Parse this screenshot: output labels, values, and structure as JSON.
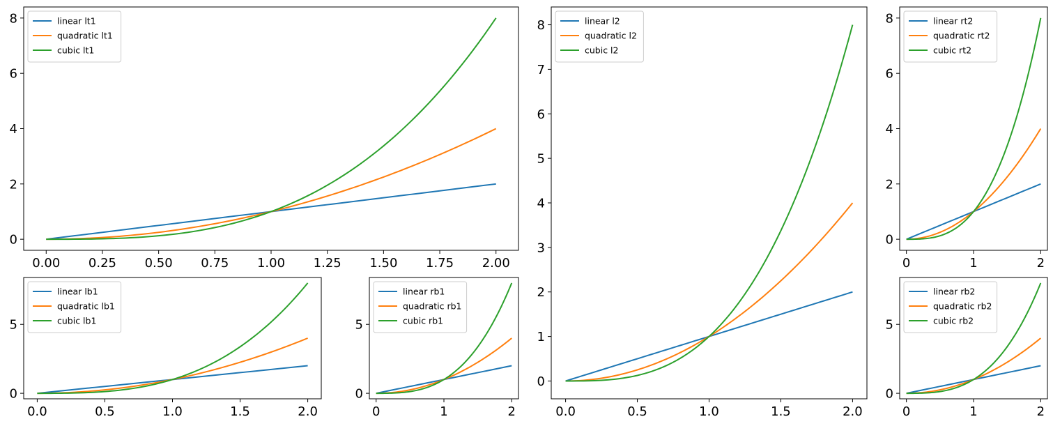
{
  "figure": {
    "colors": {
      "linear": "#1f77b4",
      "quadratic": "#ff7f0e",
      "cubic": "#2ca02c"
    }
  },
  "chart_data": [
    {
      "id": "lt1",
      "type": "line",
      "x": [
        0,
        0.25,
        0.5,
        0.75,
        1.0,
        1.25,
        1.5,
        1.75,
        2.0
      ],
      "xlim": [
        -0.1,
        2.1
      ],
      "ylim": [
        -0.4,
        8.4
      ],
      "xticks": [
        0.0,
        0.25,
        0.5,
        0.75,
        1.0,
        1.25,
        1.5,
        1.75,
        2.0
      ],
      "xtick_labels": [
        "0.00",
        "0.25",
        "0.50",
        "0.75",
        "1.00",
        "1.25",
        "1.50",
        "1.75",
        "2.00"
      ],
      "yticks": [
        0,
        2,
        4,
        6,
        8
      ],
      "ytick_labels": [
        "0",
        "2",
        "4",
        "6",
        "8"
      ],
      "legend_loc": "upper left",
      "grid": false,
      "series": [
        {
          "name": "linear lt1",
          "values": [
            0,
            0.25,
            0.5,
            0.75,
            1.0,
            1.25,
            1.5,
            1.75,
            2.0
          ]
        },
        {
          "name": "quadratic lt1",
          "values": [
            0,
            0.0625,
            0.25,
            0.5625,
            1.0,
            1.5625,
            2.25,
            3.0625,
            4.0
          ]
        },
        {
          "name": "cubic lt1",
          "values": [
            0,
            0.015625,
            0.125,
            0.421875,
            1.0,
            1.953125,
            3.375,
            5.359375,
            8.0
          ]
        }
      ]
    },
    {
      "id": "lb1",
      "type": "line",
      "x": [
        0,
        0.25,
        0.5,
        0.75,
        1.0,
        1.25,
        1.5,
        1.75,
        2.0
      ],
      "xlim": [
        -0.1,
        2.1
      ],
      "ylim": [
        -0.4,
        8.4
      ],
      "xticks": [
        0.0,
        0.5,
        1.0,
        1.5,
        2.0
      ],
      "xtick_labels": [
        "0.0",
        "0.5",
        "1.0",
        "1.5",
        "2.0"
      ],
      "yticks": [
        0,
        5
      ],
      "ytick_labels": [
        "0",
        "5"
      ],
      "legend_loc": "upper left",
      "grid": false,
      "series": [
        {
          "name": "linear lb1",
          "values": [
            0,
            0.25,
            0.5,
            0.75,
            1.0,
            1.25,
            1.5,
            1.75,
            2.0
          ]
        },
        {
          "name": "quadratic lb1",
          "values": [
            0,
            0.0625,
            0.25,
            0.5625,
            1.0,
            1.5625,
            2.25,
            3.0625,
            4.0
          ]
        },
        {
          "name": "cubic lb1",
          "values": [
            0,
            0.015625,
            0.125,
            0.421875,
            1.0,
            1.953125,
            3.375,
            5.359375,
            8.0
          ]
        }
      ]
    },
    {
      "id": "rb1",
      "type": "line",
      "x": [
        0,
        0.25,
        0.5,
        0.75,
        1.0,
        1.25,
        1.5,
        1.75,
        2.0
      ],
      "xlim": [
        -0.1,
        2.1
      ],
      "ylim": [
        -0.4,
        8.4
      ],
      "xticks": [
        0,
        1,
        2
      ],
      "xtick_labels": [
        "0",
        "1",
        "2"
      ],
      "yticks": [
        0,
        5
      ],
      "ytick_labels": [
        "0",
        "5"
      ],
      "legend_loc": "upper left",
      "grid": false,
      "series": [
        {
          "name": "linear rb1",
          "values": [
            0,
            0.25,
            0.5,
            0.75,
            1.0,
            1.25,
            1.5,
            1.75,
            2.0
          ]
        },
        {
          "name": "quadratic rb1",
          "values": [
            0,
            0.0625,
            0.25,
            0.5625,
            1.0,
            1.5625,
            2.25,
            3.0625,
            4.0
          ]
        },
        {
          "name": "cubic rb1",
          "values": [
            0,
            0.015625,
            0.125,
            0.421875,
            1.0,
            1.953125,
            3.375,
            5.359375,
            8.0
          ]
        }
      ]
    },
    {
      "id": "l2",
      "type": "line",
      "x": [
        0,
        0.25,
        0.5,
        0.75,
        1.0,
        1.25,
        1.5,
        1.75,
        2.0
      ],
      "xlim": [
        -0.1,
        2.1
      ],
      "ylim": [
        -0.4,
        8.4
      ],
      "xticks": [
        0.0,
        0.5,
        1.0,
        1.5,
        2.0
      ],
      "xtick_labels": [
        "0.0",
        "0.5",
        "1.0",
        "1.5",
        "2.0"
      ],
      "yticks": [
        0,
        1,
        2,
        3,
        4,
        5,
        6,
        7,
        8
      ],
      "ytick_labels": [
        "0",
        "1",
        "2",
        "3",
        "4",
        "5",
        "6",
        "7",
        "8"
      ],
      "legend_loc": "upper left",
      "grid": false,
      "series": [
        {
          "name": "linear l2",
          "values": [
            0,
            0.25,
            0.5,
            0.75,
            1.0,
            1.25,
            1.5,
            1.75,
            2.0
          ]
        },
        {
          "name": "quadratic l2",
          "values": [
            0,
            0.0625,
            0.25,
            0.5625,
            1.0,
            1.5625,
            2.25,
            3.0625,
            4.0
          ]
        },
        {
          "name": "cubic l2",
          "values": [
            0,
            0.015625,
            0.125,
            0.421875,
            1.0,
            1.953125,
            3.375,
            5.359375,
            8.0
          ]
        }
      ]
    },
    {
      "id": "rt2",
      "type": "line",
      "x": [
        0,
        0.25,
        0.5,
        0.75,
        1.0,
        1.25,
        1.5,
        1.75,
        2.0
      ],
      "xlim": [
        -0.1,
        2.1
      ],
      "ylim": [
        -0.4,
        8.4
      ],
      "xticks": [
        0,
        1,
        2
      ],
      "xtick_labels": [
        "0",
        "1",
        "2"
      ],
      "yticks": [
        0,
        2,
        4,
        6,
        8
      ],
      "ytick_labels": [
        "0",
        "2",
        "4",
        "6",
        "8"
      ],
      "legend_loc": "upper left",
      "grid": false,
      "series": [
        {
          "name": "linear rt2",
          "values": [
            0,
            0.25,
            0.5,
            0.75,
            1.0,
            1.25,
            1.5,
            1.75,
            2.0
          ]
        },
        {
          "name": "quadratic rt2",
          "values": [
            0,
            0.0625,
            0.25,
            0.5625,
            1.0,
            1.5625,
            2.25,
            3.0625,
            4.0
          ]
        },
        {
          "name": "cubic rt2",
          "values": [
            0,
            0.015625,
            0.125,
            0.421875,
            1.0,
            1.953125,
            3.375,
            5.359375,
            8.0
          ]
        }
      ]
    },
    {
      "id": "rb2",
      "type": "line",
      "x": [
        0,
        0.25,
        0.5,
        0.75,
        1.0,
        1.25,
        1.5,
        1.75,
        2.0
      ],
      "xlim": [
        -0.1,
        2.1
      ],
      "ylim": [
        -0.4,
        8.4
      ],
      "xticks": [
        0,
        1,
        2
      ],
      "xtick_labels": [
        "0",
        "1",
        "2"
      ],
      "yticks": [
        0,
        5
      ],
      "ytick_labels": [
        "0",
        "5"
      ],
      "legend_loc": "upper left",
      "grid": false,
      "series": [
        {
          "name": "linear rb2",
          "values": [
            0,
            0.25,
            0.5,
            0.75,
            1.0,
            1.25,
            1.5,
            1.75,
            2.0
          ]
        },
        {
          "name": "quadratic rb2",
          "values": [
            0,
            0.0625,
            0.25,
            0.5625,
            1.0,
            1.5625,
            2.25,
            3.0625,
            4.0
          ]
        },
        {
          "name": "cubic rb2",
          "values": [
            0,
            0.015625,
            0.125,
            0.421875,
            1.0,
            1.953125,
            3.375,
            5.359375,
            8.0
          ]
        }
      ]
    }
  ]
}
